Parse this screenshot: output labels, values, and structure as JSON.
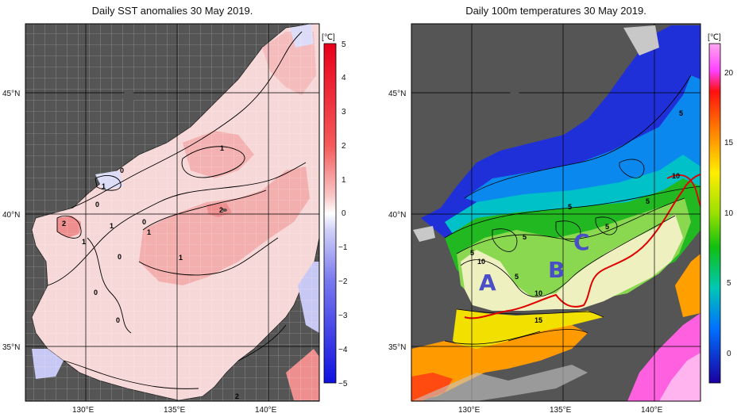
{
  "left_panel": {
    "title": "Daily SST anomalies 30 May 2019.",
    "unit": "[℃]",
    "colorbar_ticks": [
      "5",
      "4",
      "3",
      "2",
      "1",
      "0",
      "−1",
      "−2",
      "−3",
      "−4",
      "−5"
    ],
    "lat_labels": [
      "45°N",
      "40°N",
      "35°N"
    ],
    "lon_labels": [
      "130°E",
      "135°E",
      "140°E"
    ],
    "contour_labels": [
      "1",
      "0",
      "1",
      "0",
      "2",
      "1",
      "0",
      "1",
      "2",
      "0",
      "1",
      "1",
      "0",
      "0",
      "2"
    ]
  },
  "right_panel": {
    "title": "Daily 100m temperatures 30 May 2019.",
    "unit": "[℃]",
    "colorbar_ticks": [
      "20",
      "15",
      "10",
      "5",
      "0"
    ],
    "lat_labels": [
      "45°N",
      "40°N",
      "35°N"
    ],
    "lon_labels": [
      "130°E",
      "135°E",
      "140°E"
    ],
    "contour_labels": [
      "5",
      "10",
      "5",
      "5",
      "5",
      "5",
      "5",
      "5",
      "10",
      "10",
      "15"
    ],
    "region_letters": [
      "A",
      "B",
      "C"
    ]
  },
  "colors": {
    "land": "#555555",
    "anomaly_positive": "#f4a6a6",
    "anomaly_negative": "#b8b8f0",
    "warm_current_line": "#e00000",
    "letters": "#4a4fc8"
  }
}
